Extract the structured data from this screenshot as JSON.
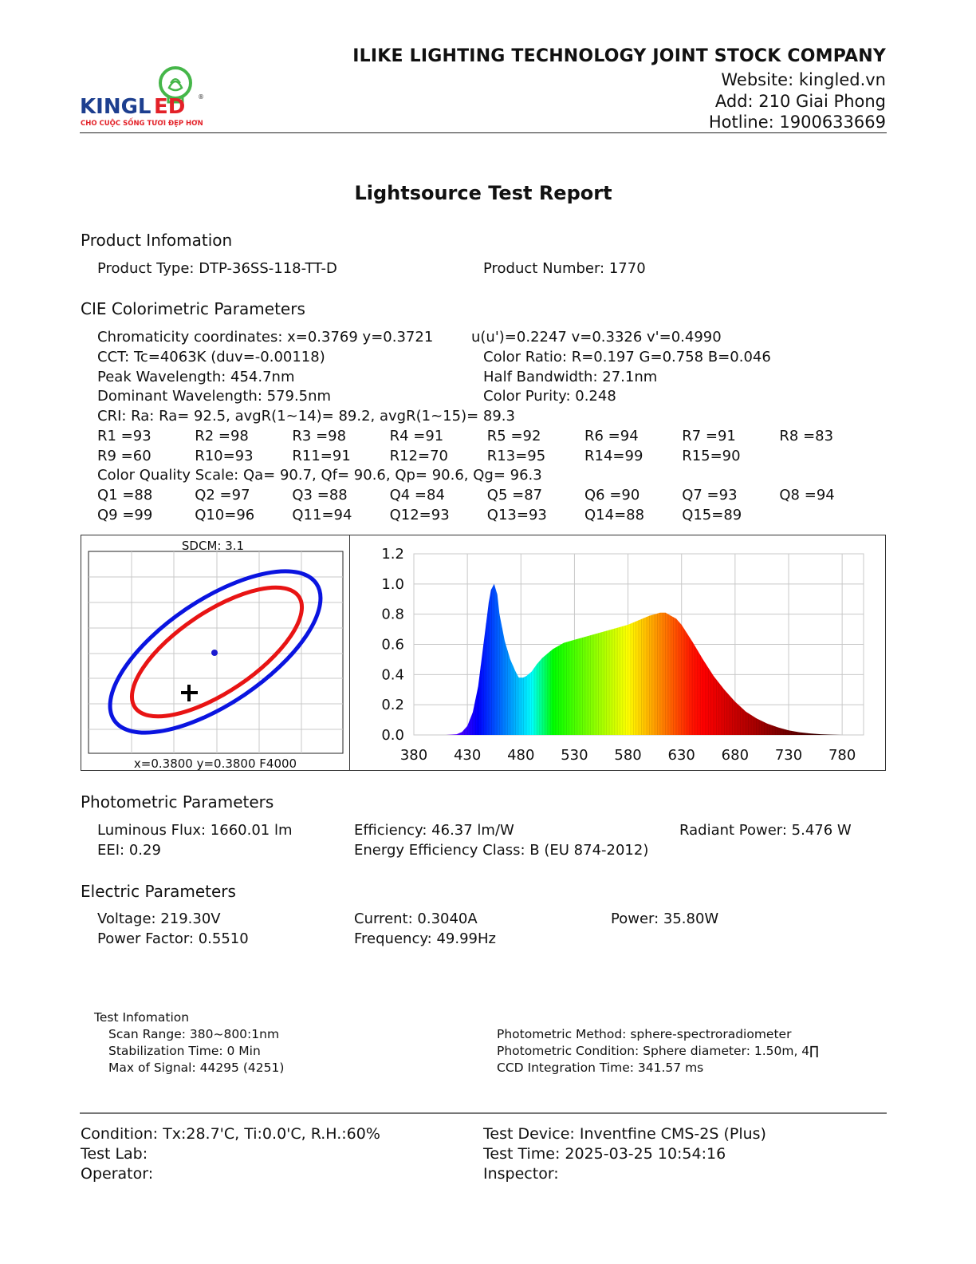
{
  "header": {
    "logo": {
      "brand_left": "KINGL",
      "brand_right": "ED",
      "tagline": "CHO CUỘC SỐNG TƯƠI ĐẸP HƠN",
      "registered": "®"
    },
    "company": "ILIKE LIGHTING TECHNOLOGY JOINT STOCK COMPANY",
    "website": "Website: kingled.vn",
    "address": "Add: 210 Giai Phong",
    "hotline": "Hotline: 1900633669"
  },
  "title": "Lightsource Test Report",
  "product": {
    "heading": "Product Infomation",
    "type": "Product Type: DTP-36SS-118-TT-D",
    "number": "Product Number: 1770"
  },
  "cie": {
    "heading": "CIE Colorimetric Parameters",
    "chromaticity": "Chromaticity coordinates: x=0.3769 y=0.3721",
    "uv": "u(u')=0.2247 v=0.3326 v'=0.4990",
    "cct": "CCT: Tc=4063K (duv=-0.00118)",
    "color_ratio": "Color Ratio: R=0.197  G=0.758  B=0.046",
    "peak": "Peak Wavelength: 454.7nm",
    "half_bandwidth": "Half Bandwidth: 27.1nm",
    "dominant": "Dominant Wavelength: 579.5nm",
    "purity": "Color Purity: 0.248",
    "cri": "CRI: Ra: Ra= 92.5, avgR(1~14)= 89.2, avgR(1~15)= 89.3",
    "r_values": [
      "R1 =93",
      "R2 =98",
      "R3 =98",
      "R4 =91",
      "R5 =92",
      "R6 =94",
      "R7 =91",
      "R8 =83",
      "R9 =60",
      "R10=93",
      "R11=91",
      "R12=70",
      "R13=95",
      "R14=99",
      "R15=90"
    ],
    "cqs": "Color Quality Scale: Qa= 90.7, Qf= 90.6, Qp= 90.6, Qg= 96.3",
    "q_values": [
      "Q1 =88",
      "Q2 =97",
      "Q3 =88",
      "Q4 =84",
      "Q5 =87",
      "Q6 =90",
      "Q7 =93",
      "Q8 =94",
      "Q9 =99",
      "Q10=96",
      "Q11=94",
      "Q12=93",
      "Q13=93",
      "Q14=88",
      "Q15=89"
    ]
  },
  "chart_data": [
    {
      "type": "scatter",
      "title": "SDCM:   3.1",
      "xlabel": "x=0.3800 y=0.3800 F4000",
      "grid": true,
      "series": [
        {
          "name": "outer-ellipse",
          "color": "#0a14e0",
          "shape": "ellipse"
        },
        {
          "name": "inner-ellipse",
          "color": "#e81414",
          "shape": "ellipse"
        },
        {
          "name": "center-point",
          "color": "#1a1ad0",
          "shape": "dot"
        },
        {
          "name": "measured-point",
          "color": "#000000",
          "shape": "cross"
        }
      ]
    },
    {
      "type": "area",
      "title": "",
      "xlabel": "",
      "ylabel": "",
      "x_ticks": [
        380,
        430,
        480,
        530,
        580,
        630,
        680,
        730,
        780
      ],
      "y_ticks": [
        "0.0",
        "0.2",
        "0.4",
        "0.6",
        "0.8",
        "1.0",
        "1.2"
      ],
      "xlim": [
        380,
        800
      ],
      "ylim": [
        0,
        1.2
      ],
      "grid": true,
      "x": [
        380,
        410,
        420,
        425,
        430,
        435,
        440,
        445,
        450,
        452,
        455,
        458,
        460,
        465,
        470,
        475,
        478,
        482,
        485,
        490,
        495,
        500,
        505,
        510,
        520,
        530,
        540,
        550,
        560,
        570,
        580,
        590,
        600,
        605,
        610,
        615,
        620,
        625,
        630,
        640,
        650,
        660,
        670,
        680,
        690,
        700,
        710,
        720,
        730,
        740,
        750,
        760,
        770,
        780
      ],
      "values": [
        0,
        0,
        0.005,
        0.02,
        0.06,
        0.15,
        0.32,
        0.6,
        0.88,
        0.96,
        1.0,
        0.93,
        0.8,
        0.62,
        0.5,
        0.42,
        0.38,
        0.38,
        0.39,
        0.42,
        0.47,
        0.51,
        0.54,
        0.57,
        0.61,
        0.63,
        0.65,
        0.67,
        0.69,
        0.71,
        0.73,
        0.76,
        0.79,
        0.8,
        0.81,
        0.81,
        0.79,
        0.77,
        0.73,
        0.62,
        0.5,
        0.39,
        0.3,
        0.22,
        0.155,
        0.11,
        0.075,
        0.05,
        0.03,
        0.018,
        0.01,
        0.005,
        0.002,
        0
      ]
    }
  ],
  "photometric": {
    "heading": "Photometric Parameters",
    "flux": "Luminous Flux: 1660.01 lm",
    "efficiency": "Efficiency: 46.37 lm/W",
    "radiant": "Radiant Power: 5.476 W",
    "eei": "EEI:  0.29",
    "class": "Energy Efficiency Class: B (EU 874-2012)"
  },
  "electric": {
    "heading": "Electric Parameters",
    "voltage": "Voltage: 219.30V",
    "current": "Current: 0.3040A",
    "power": "Power: 35.80W",
    "pf": "Power Factor: 0.5510",
    "frequency": "Frequency: 49.99Hz"
  },
  "test_info": {
    "heading": "Test Infomation",
    "scan_range": "Scan Range: 380~800:1nm",
    "stabilization": "Stabilization Time: 0 Min",
    "max_signal": "Max of Signal: 44295 (4251)",
    "method": "Photometric Method: sphere-spectroradiometer",
    "condition": "Photometric Condition: Sphere diameter: 1.50m, 4∏",
    "ccd": "CCD Integration Time: 341.57 ms"
  },
  "footer": {
    "condition": "Condition: Tx:28.7'C, Ti:0.0'C, R.H.:60%",
    "device": "Test Device: Inventfine CMS-2S (Plus)",
    "lab": "Test Lab:",
    "time": "Test Time: 2025-03-25 10:54:16",
    "operator": "Operator:",
    "inspector": "Inspector:"
  }
}
